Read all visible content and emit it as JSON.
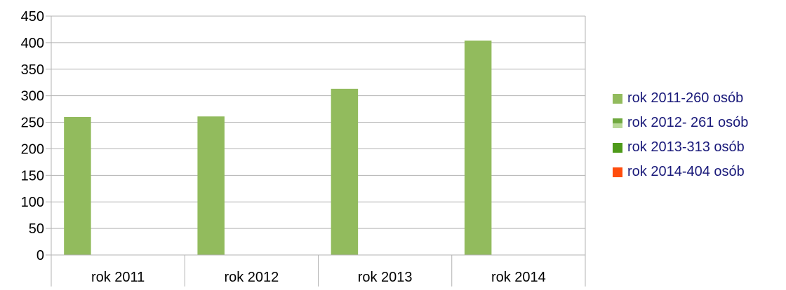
{
  "chart_data": {
    "type": "bar",
    "categories": [
      "rok 2011",
      "rok 2012",
      "rok 2013",
      "rok 2014"
    ],
    "series": [
      {
        "name": "rok 2011-260 osób",
        "values": [
          260,
          261,
          313,
          404
        ],
        "color": "#92bb5d"
      },
      {
        "name": "rok 2012- 261 osób",
        "values": [
          null,
          null,
          null,
          null
        ],
        "color": "#6fa83e"
      },
      {
        "name": "rok 2013-313 osób",
        "values": [
          null,
          null,
          null,
          null
        ],
        "color": "#4e9a1a"
      },
      {
        "name": "rok 2014-404 osób",
        "values": [
          null,
          null,
          null,
          null
        ],
        "color": "#ff4d0d"
      }
    ],
    "ylim": [
      0,
      450
    ],
    "yticks": [
      0,
      50,
      100,
      150,
      200,
      250,
      300,
      350,
      400,
      450
    ],
    "grid": true,
    "legend_position": "right"
  }
}
